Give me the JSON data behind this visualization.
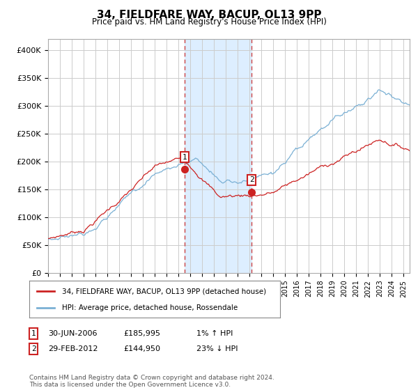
{
  "title": "34, FIELDFARE WAY, BACUP, OL13 9PP",
  "subtitle": "Price paid vs. HM Land Registry's House Price Index (HPI)",
  "ylabel_ticks": [
    "£0",
    "£50K",
    "£100K",
    "£150K",
    "£200K",
    "£250K",
    "£300K",
    "£350K",
    "£400K"
  ],
  "ylim": [
    0,
    420000
  ],
  "xlim_start": 1995.0,
  "xlim_end": 2025.5,
  "sale1_date": 2006.5,
  "sale1_price": 185995,
  "sale2_date": 2012.17,
  "sale2_price": 144950,
  "legend_line1": "34, FIELDFARE WAY, BACUP, OL13 9PP (detached house)",
  "legend_line2": "HPI: Average price, detached house, Rossendale",
  "footer": "Contains HM Land Registry data © Crown copyright and database right 2024.\nThis data is licensed under the Open Government Licence v3.0.",
  "hpi_color": "#7ab0d4",
  "price_color": "#cc2222",
  "shade_color": "#ddeeff",
  "vline_color": "#cc4444",
  "background_color": "#ffffff",
  "grid_color": "#cccccc"
}
